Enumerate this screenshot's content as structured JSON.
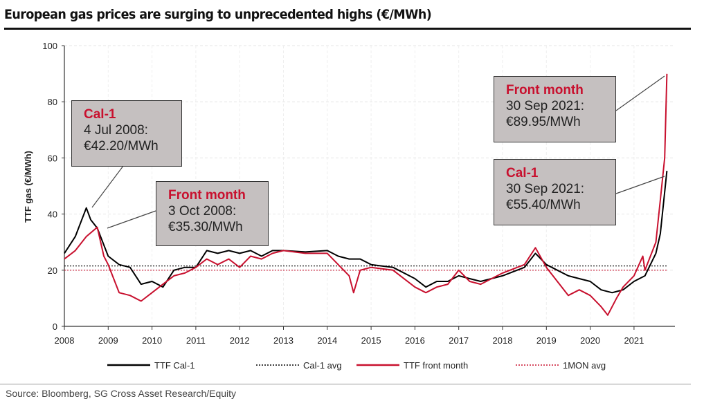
{
  "title": "European gas prices are surging to unprecedented highs (€/MWh)",
  "source": "Source: Bloomberg, SG Cross Asset Research/Equity",
  "colors": {
    "cal1": "#000000",
    "front_month": "#c8102e",
    "box": "#c5c0c0"
  },
  "annotations": [
    {
      "heading": "Cal-1",
      "date": "4 Jul 2008:",
      "value": "€42.20/MWh"
    },
    {
      "heading": "Front month",
      "date": "3 Oct 2008:",
      "value": "€35.30/MWh"
    },
    {
      "heading": "Front month",
      "date": "30 Sep 2021:",
      "value": "€89.95/MWh"
    },
    {
      "heading": "Cal-1",
      "date": "30 Sep 2021:",
      "value": "€55.40/MWh"
    }
  ],
  "chart_data": {
    "type": "line",
    "title": "European gas prices are surging to unprecedented highs (€/MWh)",
    "ylabel": "TTF gas (€/MWh)",
    "xlabel": "",
    "ylim": [
      0,
      100
    ],
    "yticks": [
      "0",
      "20",
      "40",
      "60",
      "80",
      "100"
    ],
    "xticks": [
      "2008",
      "2009",
      "2010",
      "2011",
      "2012",
      "2013",
      "2014",
      "2015",
      "2016",
      "2017",
      "2018",
      "2019",
      "2020",
      "2021"
    ],
    "grid": true,
    "legend_position": "bottom",
    "series": [
      {
        "name": "TTF Cal-1",
        "style": "solid",
        "color": "#000000",
        "x": [
          2008.0,
          2008.25,
          2008.5,
          2008.6,
          2008.75,
          2009.0,
          2009.25,
          2009.5,
          2009.75,
          2010.0,
          2010.25,
          2010.5,
          2010.75,
          2011.0,
          2011.25,
          2011.5,
          2011.75,
          2012.0,
          2012.25,
          2012.5,
          2012.75,
          2013.0,
          2013.5,
          2014.0,
          2014.25,
          2014.5,
          2014.75,
          2015.0,
          2015.5,
          2016.0,
          2016.25,
          2016.5,
          2016.75,
          2017.0,
          2017.25,
          2017.5,
          2018.0,
          2018.5,
          2018.75,
          2019.0,
          2019.25,
          2019.5,
          2019.75,
          2020.0,
          2020.25,
          2020.5,
          2020.75,
          2021.0,
          2021.25,
          2021.5,
          2021.6,
          2021.75
        ],
        "y": [
          26,
          32,
          42.2,
          38,
          35,
          25,
          22,
          21,
          15,
          16,
          14,
          20,
          21,
          21,
          27,
          26,
          27,
          26,
          27,
          25,
          27,
          27,
          26.5,
          27,
          25,
          24,
          24,
          22,
          21,
          17,
          14,
          16,
          16,
          18,
          17,
          16,
          18,
          21,
          26,
          22,
          20,
          18,
          17,
          16,
          13,
          12,
          13,
          16,
          18,
          26,
          33,
          55.4
        ]
      },
      {
        "name": "Cal-1 avg",
        "style": "dotted",
        "color": "#000000",
        "x": [
          2008.0,
          2021.75
        ],
        "y": [
          21.5,
          21.5
        ]
      },
      {
        "name": "TTF front month",
        "style": "solid",
        "color": "#c8102e",
        "x": [
          2008.0,
          2008.25,
          2008.5,
          2008.75,
          2008.9,
          2009.0,
          2009.25,
          2009.5,
          2009.75,
          2010.0,
          2010.25,
          2010.5,
          2010.75,
          2011.0,
          2011.25,
          2011.5,
          2011.75,
          2012.0,
          2012.25,
          2012.5,
          2012.75,
          2013.0,
          2013.5,
          2014.0,
          2014.25,
          2014.5,
          2014.6,
          2014.75,
          2015.0,
          2015.5,
          2016.0,
          2016.25,
          2016.5,
          2016.75,
          2017.0,
          2017.25,
          2017.5,
          2018.0,
          2018.5,
          2018.75,
          2019.0,
          2019.25,
          2019.5,
          2019.75,
          2020.0,
          2020.25,
          2020.4,
          2020.6,
          2020.75,
          2021.0,
          2021.2,
          2021.25,
          2021.5,
          2021.6,
          2021.7,
          2021.75
        ],
        "y": [
          24,
          27,
          32,
          35.3,
          25,
          22,
          12,
          11,
          9,
          12,
          15,
          18,
          19,
          21,
          24,
          22,
          24,
          21,
          25,
          24,
          26,
          27,
          26,
          26,
          22,
          18,
          12,
          20,
          21,
          20,
          14,
          12,
          14,
          15,
          20,
          16,
          15,
          19,
          22,
          28,
          21,
          16,
          11,
          13,
          11,
          7,
          4,
          10,
          14,
          18,
          25,
          20,
          30,
          45,
          60,
          89.95
        ]
      },
      {
        "name": "1MON avg",
        "style": "dotted",
        "color": "#c8102e",
        "x": [
          2008.0,
          2021.75
        ],
        "y": [
          20,
          20
        ]
      }
    ]
  }
}
